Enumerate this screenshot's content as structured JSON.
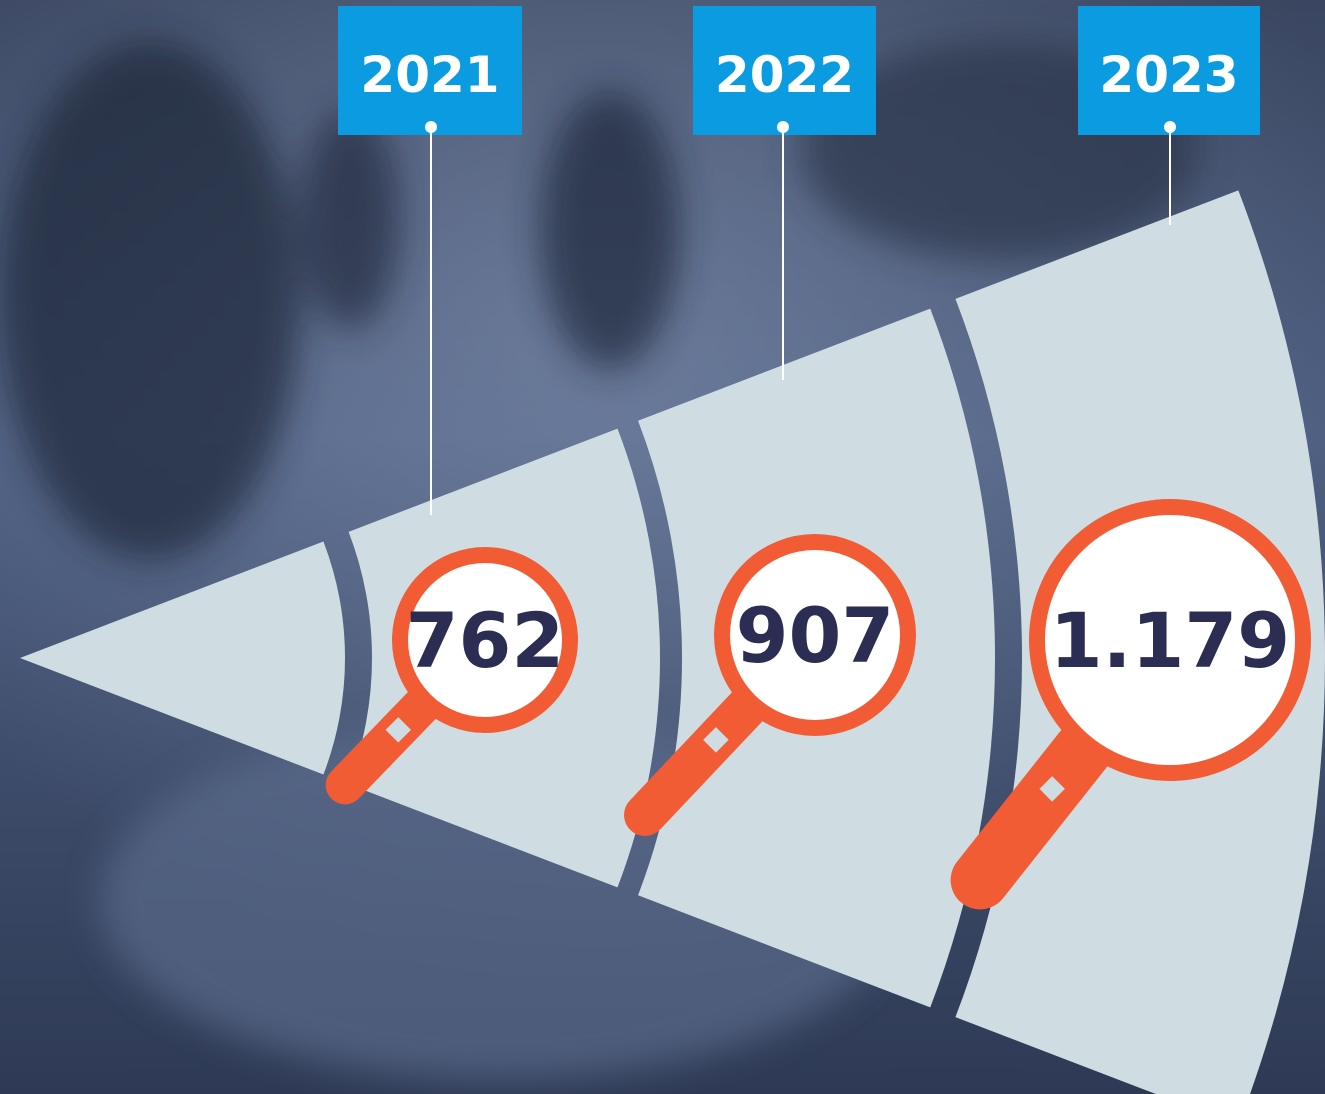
{
  "items": [
    {
      "year": "2021",
      "value": "762"
    },
    {
      "year": "2022",
      "value": "907"
    },
    {
      "year": "2023",
      "value": "1.179"
    }
  ]
}
